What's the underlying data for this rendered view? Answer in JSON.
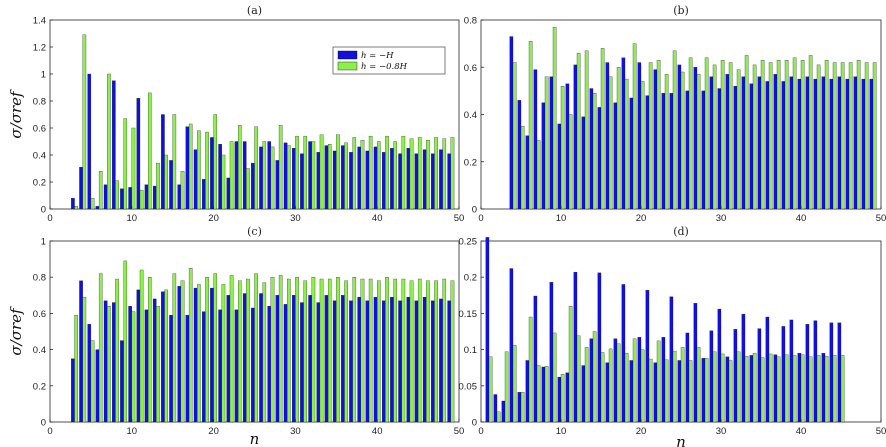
{
  "colors": {
    "blue": "#1010e0",
    "green": "#8cf04a",
    "axis": "#262626"
  },
  "chart_data": [
    {
      "type": "bar",
      "title": "(a)",
      "ylabel": "σ/σref",
      "xlabel": "",
      "xlim": [
        0,
        50
      ],
      "ylim": [
        0,
        1.4
      ],
      "xticks": [
        0,
        10,
        20,
        30,
        40,
        50
      ],
      "yticks": [
        0,
        0.2,
        0.4,
        0.6,
        0.8,
        1,
        1.2,
        1.4
      ],
      "ytick_labels": [
        "0",
        "0.2",
        "0.4",
        "0.6",
        "0.8",
        "1",
        "1.2",
        "1.4"
      ],
      "legend": {
        "placement": "top-right",
        "entries": [
          "h = −H",
          "h = −0.8H"
        ]
      },
      "x": [
        3,
        4,
        5,
        6,
        7,
        8,
        9,
        10,
        11,
        12,
        13,
        14,
        15,
        16,
        17,
        18,
        19,
        20,
        21,
        22,
        23,
        24,
        25,
        26,
        27,
        28,
        29,
        30,
        31,
        32,
        33,
        34,
        35,
        36,
        37,
        38,
        39,
        40,
        41,
        42,
        43,
        44,
        45,
        46,
        47,
        48,
        49
      ],
      "series": [
        {
          "name": "h = −H",
          "values": [
            0.08,
            0.31,
            1.0,
            0.02,
            0.18,
            0.95,
            0.15,
            0.16,
            0.82,
            0.18,
            0.17,
            0.7,
            0.36,
            0.18,
            0.61,
            0.44,
            0.22,
            0.53,
            0.48,
            0.23,
            0.5,
            0.5,
            0.34,
            0.46,
            0.5,
            0.36,
            0.49,
            0.45,
            0.41,
            0.5,
            0.42,
            0.47,
            0.43,
            0.47,
            0.42,
            0.46,
            0.43,
            0.46,
            0.42,
            0.45,
            0.41,
            0.45,
            0.41,
            0.44,
            0.41,
            0.44,
            0.41
          ]
        },
        {
          "name": "h = −0.8H",
          "values": [
            0.02,
            1.29,
            0.08,
            0.28,
            1.0,
            0.21,
            0.67,
            0.6,
            0.14,
            0.86,
            0.34,
            0.4,
            0.7,
            0.28,
            0.63,
            0.58,
            0.57,
            0.7,
            0.4,
            0.5,
            0.62,
            0.3,
            0.61,
            0.5,
            0.46,
            0.62,
            0.47,
            0.54,
            0.54,
            0.5,
            0.55,
            0.48,
            0.55,
            0.49,
            0.53,
            0.51,
            0.54,
            0.5,
            0.54,
            0.5,
            0.54,
            0.52,
            0.53,
            0.51,
            0.53,
            0.52,
            0.53
          ]
        }
      ]
    },
    {
      "type": "bar",
      "title": "(b)",
      "ylabel": "",
      "xlabel": "",
      "xlim": [
        0,
        50
      ],
      "ylim": [
        0,
        0.8
      ],
      "xticks": [
        0,
        10,
        20,
        30,
        40,
        50
      ],
      "yticks": [
        0,
        0.2,
        0.4,
        0.6,
        0.8
      ],
      "ytick_labels": [
        "0",
        "0.2",
        "0.4",
        "0.6",
        "0.8"
      ],
      "x": [
        4,
        5,
        6,
        7,
        8,
        9,
        10,
        11,
        12,
        13,
        14,
        15,
        16,
        17,
        18,
        19,
        20,
        21,
        22,
        23,
        24,
        25,
        26,
        27,
        28,
        29,
        30,
        31,
        32,
        33,
        34,
        35,
        36,
        37,
        38,
        39,
        40,
        41,
        42,
        43,
        44,
        45,
        46,
        47,
        48,
        49
      ],
      "series": [
        {
          "name": "h = −H",
          "values": [
            0.73,
            0.46,
            0.31,
            0.59,
            0.45,
            0.56,
            0.36,
            0.53,
            0.61,
            0.39,
            0.51,
            0.43,
            0.62,
            0.45,
            0.64,
            0.47,
            0.62,
            0.48,
            0.59,
            0.49,
            0.49,
            0.61,
            0.5,
            0.6,
            0.5,
            0.56,
            0.51,
            0.57,
            0.52,
            0.56,
            0.53,
            0.56,
            0.54,
            0.57,
            0.54,
            0.56,
            0.55,
            0.56,
            0.55,
            0.56,
            0.55,
            0.56,
            0.55,
            0.56,
            0.55,
            0.55
          ]
        },
        {
          "name": "h = −0.8H",
          "values": [
            0.62,
            0.35,
            0.71,
            0.29,
            0.56,
            0.77,
            0.52,
            0.4,
            0.66,
            0.67,
            0.49,
            0.68,
            0.56,
            0.6,
            0.55,
            0.7,
            0.54,
            0.62,
            0.63,
            0.57,
            0.67,
            0.58,
            0.64,
            0.57,
            0.64,
            0.61,
            0.63,
            0.62,
            0.59,
            0.65,
            0.61,
            0.63,
            0.62,
            0.63,
            0.63,
            0.64,
            0.63,
            0.65,
            0.61,
            0.63,
            0.62,
            0.62,
            0.62,
            0.63,
            0.62,
            0.62
          ]
        }
      ]
    },
    {
      "type": "bar",
      "title": "(c)",
      "ylabel": "σ/σref",
      "xlabel": "n",
      "xlim": [
        0,
        50
      ],
      "ylim": [
        0,
        1
      ],
      "xticks": [
        0,
        10,
        20,
        30,
        40,
        50
      ],
      "yticks": [
        0,
        0.2,
        0.4,
        0.6,
        0.8,
        1
      ],
      "ytick_labels": [
        "0",
        "0.2",
        "0.4",
        "0.6",
        "0.8",
        "1"
      ],
      "x": [
        3,
        4,
        5,
        6,
        7,
        8,
        9,
        10,
        11,
        12,
        13,
        14,
        15,
        16,
        17,
        18,
        19,
        20,
        21,
        22,
        23,
        24,
        25,
        26,
        27,
        28,
        29,
        30,
        31,
        32,
        33,
        34,
        35,
        36,
        37,
        38,
        39,
        40,
        41,
        42,
        43,
        44,
        45,
        46,
        47,
        48,
        49
      ],
      "series": [
        {
          "name": "h = −H",
          "values": [
            0.35,
            0.78,
            0.54,
            0.4,
            0.67,
            0.66,
            0.45,
            0.64,
            0.73,
            0.62,
            0.68,
            0.72,
            0.59,
            0.75,
            0.59,
            0.74,
            0.61,
            0.74,
            0.62,
            0.7,
            0.62,
            0.71,
            0.63,
            0.71,
            0.64,
            0.7,
            0.65,
            0.7,
            0.66,
            0.7,
            0.66,
            0.7,
            0.67,
            0.7,
            0.67,
            0.69,
            0.67,
            0.69,
            0.67,
            0.69,
            0.67,
            0.69,
            0.67,
            0.69,
            0.67,
            0.68,
            0.67
          ]
        },
        {
          "name": "h = −0.8H",
          "values": [
            0.59,
            0.69,
            0.45,
            0.82,
            0.64,
            0.79,
            0.89,
            0.61,
            0.84,
            0.8,
            0.64,
            0.73,
            0.82,
            0.78,
            0.85,
            0.76,
            0.8,
            0.82,
            0.76,
            0.81,
            0.78,
            0.79,
            0.82,
            0.77,
            0.8,
            0.81,
            0.79,
            0.8,
            0.78,
            0.8,
            0.79,
            0.79,
            0.8,
            0.78,
            0.8,
            0.79,
            0.79,
            0.78,
            0.8,
            0.79,
            0.79,
            0.78,
            0.79,
            0.78,
            0.78,
            0.79,
            0.78
          ]
        }
      ]
    },
    {
      "type": "bar",
      "title": "(d)",
      "ylabel": "",
      "xlabel": "n",
      "xlim": [
        0,
        50
      ],
      "ylim": [
        0,
        0.25
      ],
      "xticks": [
        0,
        10,
        20,
        30,
        40,
        50
      ],
      "yticks": [
        0,
        0.05,
        0.1,
        0.15,
        0.2,
        0.25
      ],
      "ytick_labels": [
        "0",
        "0.05",
        "0.1",
        "0.15",
        "0.2",
        "0.25"
      ],
      "x": [
        1,
        2,
        3,
        4,
        5,
        6,
        7,
        8,
        9,
        10,
        11,
        12,
        13,
        14,
        15,
        16,
        17,
        18,
        19,
        20,
        21,
        22,
        23,
        24,
        25,
        26,
        27,
        28,
        29,
        30,
        31,
        32,
        33,
        34,
        35,
        36,
        37,
        38,
        39,
        40,
        41,
        42,
        43,
        44,
        45
      ],
      "series": [
        {
          "name": "h = −H",
          "values": [
            0.255,
            0.038,
            0.029,
            0.212,
            0.041,
            0.085,
            0.174,
            0.076,
            0.193,
            0.062,
            0.068,
            0.207,
            0.078,
            0.115,
            0.206,
            0.082,
            0.115,
            0.19,
            0.085,
            0.117,
            0.182,
            0.082,
            0.117,
            0.173,
            0.085,
            0.123,
            0.164,
            0.088,
            0.126,
            0.156,
            0.09,
            0.128,
            0.149,
            0.092,
            0.129,
            0.145,
            0.093,
            0.132,
            0.141,
            0.095,
            0.135,
            0.14,
            0.095,
            0.137,
            0.137
          ]
        },
        {
          "name": "h = −0.8H",
          "values": [
            0.09,
            0.014,
            0.097,
            0.106,
            0.041,
            0.145,
            0.078,
            0.077,
            0.123,
            0.066,
            0.16,
            0.119,
            0.103,
            0.125,
            0.096,
            0.101,
            0.108,
            0.095,
            0.115,
            0.1,
            0.087,
            0.112,
            0.086,
            0.098,
            0.103,
            0.085,
            0.103,
            0.088,
            0.097,
            0.094,
            0.085,
            0.097,
            0.091,
            0.095,
            0.089,
            0.094,
            0.09,
            0.093,
            0.092,
            0.093,
            0.09,
            0.092,
            0.091,
            0.092,
            0.092
          ]
        }
      ]
    }
  ]
}
